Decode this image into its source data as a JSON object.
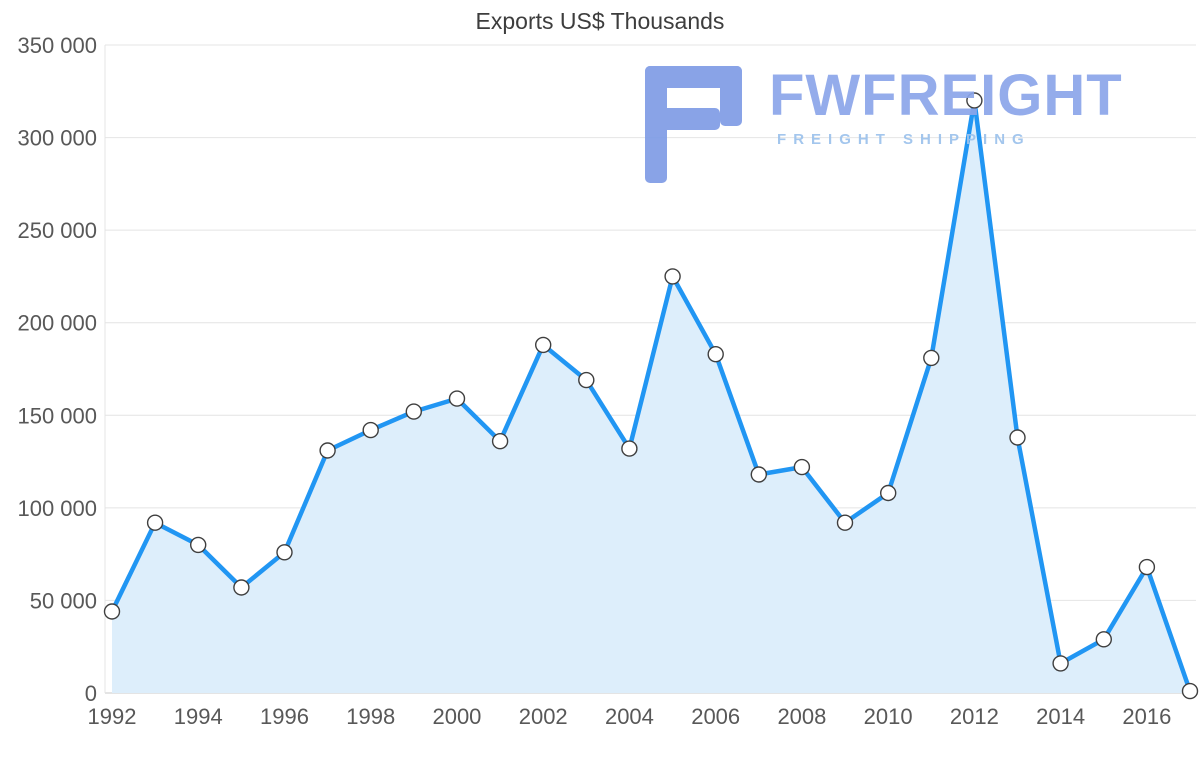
{
  "watermark": {
    "name": "FWFREIGHT",
    "tagline": "FREIGHT SHIPPING",
    "logo_color": "#7f9ce6",
    "name_color": "#8ca6ea",
    "tagline_color": "#9cc2ec"
  },
  "colors": {
    "line": "#2196f3",
    "area": "#ddeefb",
    "marker_fill": "#ffffff",
    "marker_stroke": "#3f3f3f",
    "grid": "#e4e4e4",
    "axis": "#c9c9c9",
    "label": "#585858",
    "title": "#3d3d3d"
  },
  "chart_data": {
    "type": "area",
    "title": "Exports US$ Thousands",
    "xlabel": "",
    "ylabel": "",
    "x": [
      1992,
      1993,
      1994,
      1995,
      1996,
      1997,
      1998,
      1999,
      2000,
      2001,
      2002,
      2003,
      2004,
      2005,
      2006,
      2007,
      2008,
      2009,
      2010,
      2011,
      2012,
      2013,
      2014,
      2015,
      2016,
      2017
    ],
    "values": [
      44000,
      92000,
      80000,
      57000,
      76000,
      131000,
      142000,
      152000,
      159000,
      136000,
      188000,
      169000,
      132000,
      225000,
      183000,
      118000,
      122000,
      92000,
      108000,
      181000,
      320000,
      138000,
      16000,
      29000,
      68000,
      1000
    ],
    "ylim": [
      0,
      350000
    ],
    "ytick_step": 50000,
    "ytick_labels": [
      "0",
      "50 000",
      "100 000",
      "150 000",
      "200 000",
      "250 000",
      "300 000",
      "350 000"
    ],
    "xtick_labels": [
      "1992",
      "1994",
      "1996",
      "1998",
      "2000",
      "2002",
      "2004",
      "2006",
      "2008",
      "2010",
      "2012",
      "2014",
      "2016"
    ],
    "grid": true,
    "legend": false,
    "marker": "circle"
  }
}
